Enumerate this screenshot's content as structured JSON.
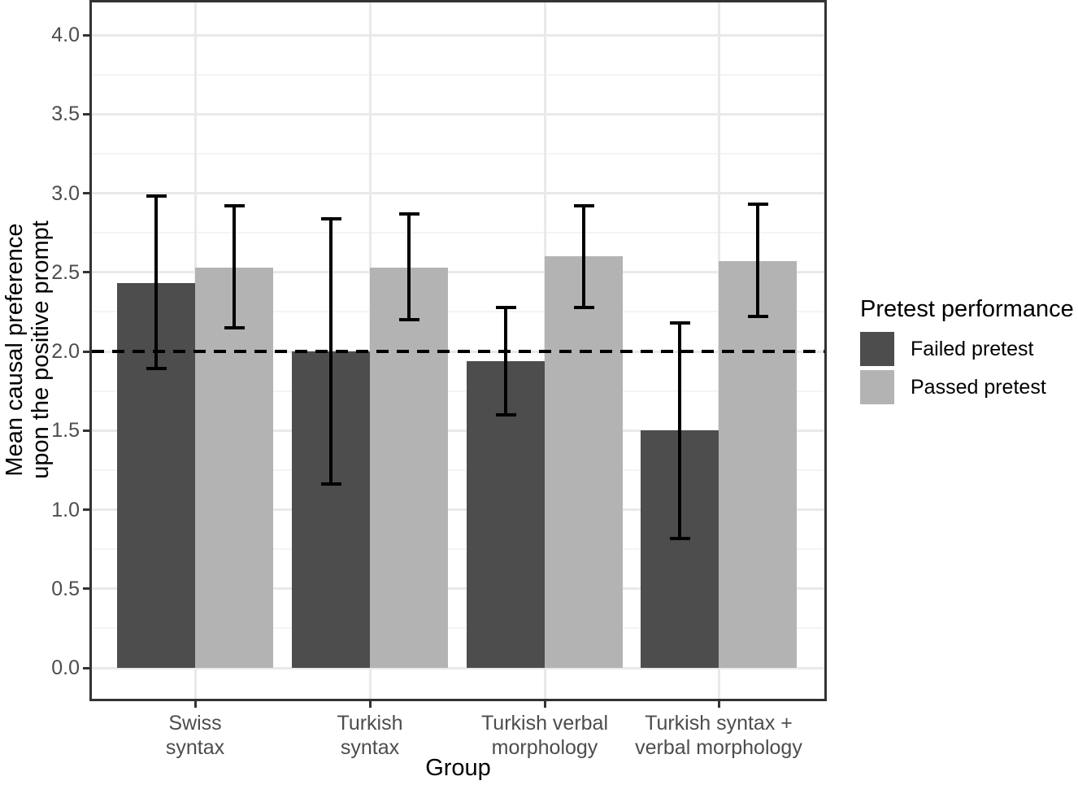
{
  "chart_data": {
    "type": "bar",
    "title": "",
    "xlabel": "Group",
    "ylabel_lines": [
      "Mean causal preference",
      "upon the positive prompt"
    ],
    "ylabel": "Mean causal preference upon the positive prompt",
    "ylim": [
      0,
      4
    ],
    "yticks": [
      0,
      0.5,
      1,
      1.5,
      2,
      2.5,
      3,
      3.5,
      4
    ],
    "categories": [
      [
        "Swiss",
        "syntax"
      ],
      [
        "Turkish",
        "syntax"
      ],
      [
        "Turkish verbal",
        "morphology"
      ],
      [
        "Turkish syntax +",
        "verbal morphology"
      ]
    ],
    "legend": {
      "title": "Pretest performance",
      "position": "right"
    },
    "series": [
      {
        "name": "Failed pretest",
        "color": "#4d4d4d",
        "values": [
          2.43,
          2.0,
          1.94,
          1.5
        ],
        "error_low": [
          1.89,
          1.16,
          1.6,
          0.82
        ],
        "error_high": [
          2.98,
          2.84,
          2.28,
          2.18
        ]
      },
      {
        "name": "Passed pretest",
        "color": "#b3b3b3",
        "values": [
          2.53,
          2.53,
          2.6,
          2.57
        ],
        "error_low": [
          2.15,
          2.2,
          2.28,
          2.22
        ],
        "error_high": [
          2.92,
          2.87,
          2.92,
          2.93
        ]
      }
    ],
    "reference_line": {
      "y": 2.0,
      "style": "dashed",
      "color": "#000000"
    },
    "grid": {
      "major_h": true,
      "minor_h": true,
      "major_v_at_categories": true
    },
    "panel_border_color": "#333333",
    "tick_label_color": "#4d4d4d"
  }
}
